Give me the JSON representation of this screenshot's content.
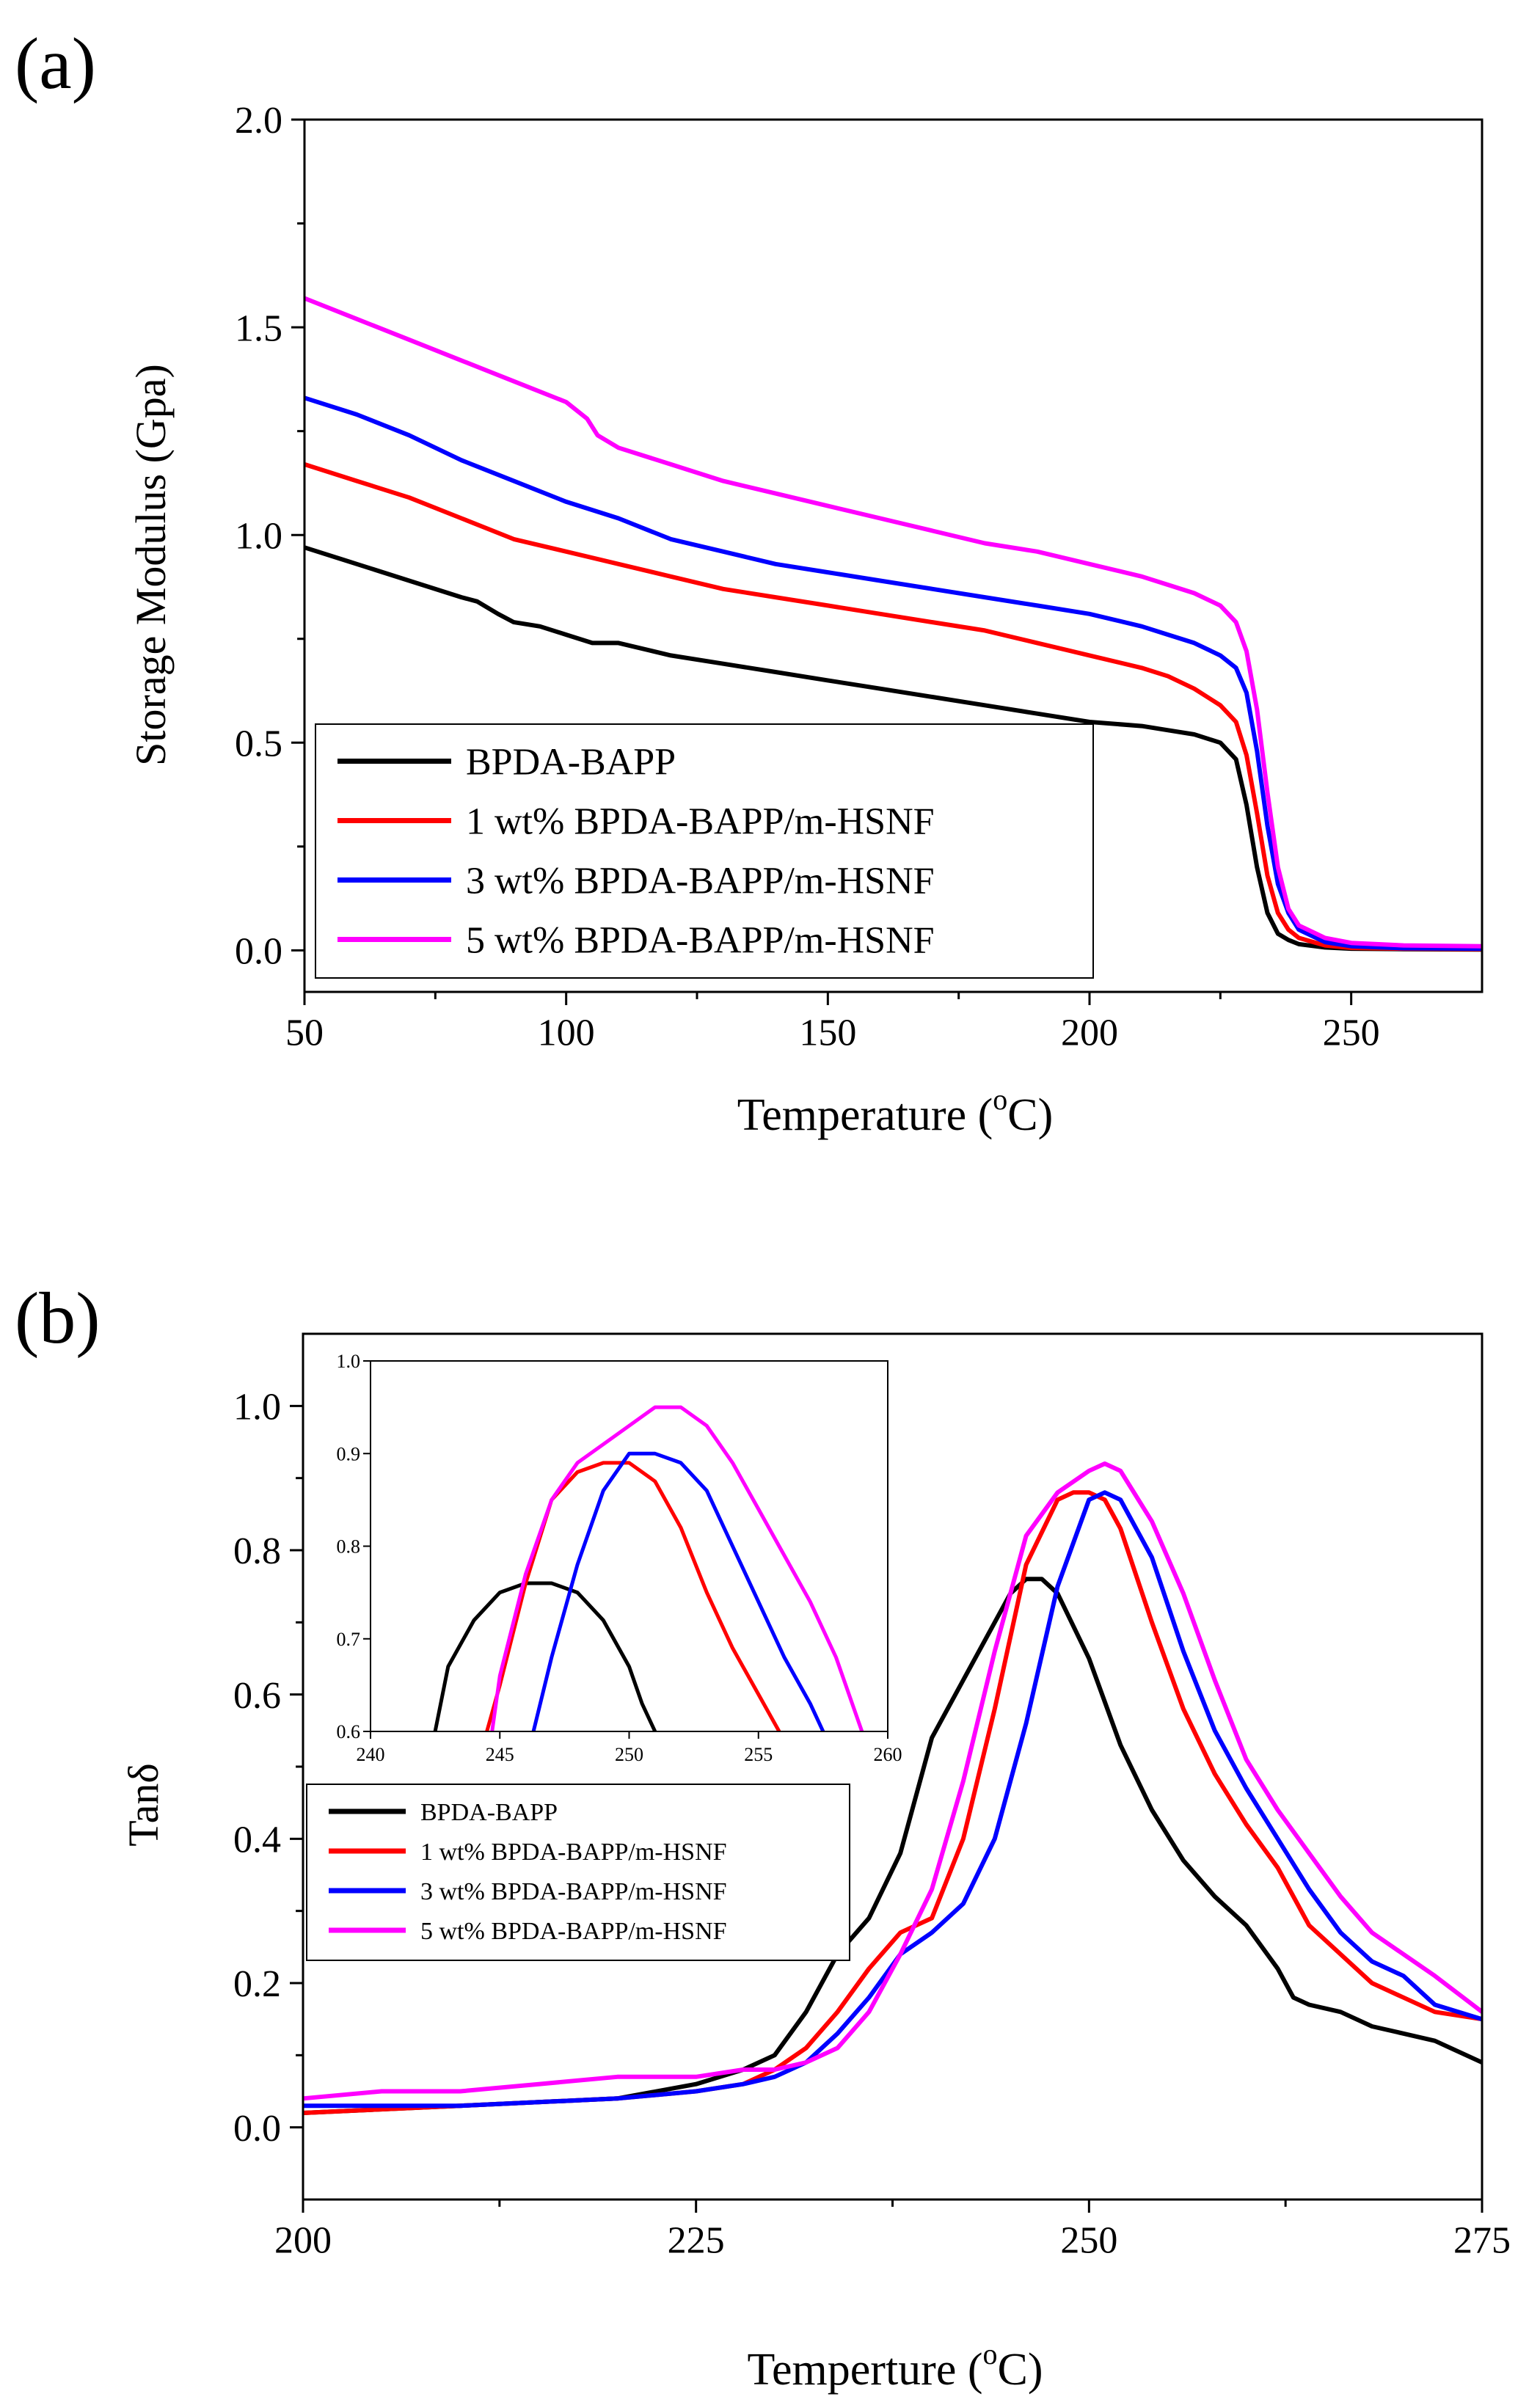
{
  "chart_data": [
    {
      "panel_label": "(a)",
      "type": "line",
      "xlabel_main": "Temperature (",
      "xlabel_sup": "o",
      "xlabel_end": "C)",
      "ylabel": "Storage Modulus (Gpa)",
      "xlim": [
        50,
        275
      ],
      "ylim": [
        -0.1,
        2.0
      ],
      "xticks": [
        50,
        100,
        150,
        200,
        250
      ],
      "xtick_labels": [
        "50",
        "100",
        "150",
        "200",
        "250"
      ],
      "yticks": [
        0,
        0.5,
        1.0,
        1.5,
        2.0
      ],
      "ytick_labels": [
        "0.0",
        "0.5",
        "1.0",
        "1.5",
        "2.0"
      ],
      "legend_position": "bottom-left",
      "series": [
        {
          "name": "BPDA-BAPP",
          "color": "#000000",
          "x": [
            50,
            60,
            70,
            80,
            83,
            87,
            90,
            95,
            100,
            105,
            110,
            120,
            130,
            140,
            150,
            160,
            170,
            180,
            190,
            200,
            210,
            215,
            220,
            225,
            228,
            230,
            232,
            234,
            236,
            238,
            240,
            245,
            250,
            260,
            275
          ],
          "y": [
            0.97,
            0.93,
            0.89,
            0.85,
            0.84,
            0.81,
            0.79,
            0.78,
            0.76,
            0.74,
            0.74,
            0.71,
            0.69,
            0.67,
            0.65,
            0.63,
            0.61,
            0.59,
            0.57,
            0.55,
            0.54,
            0.53,
            0.52,
            0.5,
            0.46,
            0.35,
            0.2,
            0.09,
            0.04,
            0.025,
            0.015,
            0.007,
            0.004,
            0.003,
            0.002
          ]
        },
        {
          "name": "1 wt% BPDA-BAPP/m-HSNF",
          "color": "#ff0000",
          "x": [
            50,
            60,
            70,
            80,
            90,
            100,
            110,
            120,
            130,
            140,
            150,
            160,
            170,
            180,
            190,
            200,
            210,
            215,
            220,
            225,
            228,
            230,
            232,
            234,
            236,
            238,
            240,
            245,
            250,
            260,
            275
          ],
          "y": [
            1.17,
            1.13,
            1.09,
            1.04,
            0.99,
            0.96,
            0.93,
            0.9,
            0.87,
            0.85,
            0.83,
            0.81,
            0.79,
            0.77,
            0.74,
            0.71,
            0.68,
            0.66,
            0.63,
            0.59,
            0.55,
            0.47,
            0.33,
            0.18,
            0.09,
            0.05,
            0.03,
            0.012,
            0.006,
            0.004,
            0.003
          ]
        },
        {
          "name": "3 wt% BPDA-BAPP/m-HSNF",
          "color": "#0000ff",
          "x": [
            50,
            60,
            70,
            80,
            90,
            100,
            110,
            120,
            130,
            140,
            150,
            160,
            170,
            180,
            190,
            200,
            210,
            215,
            220,
            225,
            228,
            230,
            232,
            234,
            236,
            238,
            240,
            245,
            250,
            260,
            275
          ],
          "y": [
            1.33,
            1.29,
            1.24,
            1.18,
            1.13,
            1.08,
            1.04,
            0.99,
            0.96,
            0.93,
            0.91,
            0.89,
            0.87,
            0.85,
            0.83,
            0.81,
            0.78,
            0.76,
            0.74,
            0.71,
            0.68,
            0.62,
            0.48,
            0.3,
            0.16,
            0.09,
            0.05,
            0.02,
            0.01,
            0.005,
            0.004
          ]
        },
        {
          "name": "5 wt% BPDA-BAPP/m-HSNF",
          "color": "#ff00ff",
          "x": [
            50,
            60,
            70,
            80,
            90,
            100,
            104,
            106,
            110,
            120,
            130,
            140,
            150,
            160,
            170,
            180,
            190,
            200,
            210,
            215,
            220,
            225,
            228,
            230,
            232,
            234,
            236,
            238,
            240,
            245,
            250,
            260,
            275
          ],
          "y": [
            1.57,
            1.52,
            1.47,
            1.42,
            1.37,
            1.32,
            1.28,
            1.24,
            1.21,
            1.17,
            1.13,
            1.1,
            1.07,
            1.04,
            1.01,
            0.98,
            0.96,
            0.93,
            0.9,
            0.88,
            0.86,
            0.83,
            0.79,
            0.72,
            0.58,
            0.38,
            0.2,
            0.1,
            0.06,
            0.03,
            0.018,
            0.012,
            0.01
          ]
        }
      ]
    },
    {
      "panel_label": "(b)",
      "type": "line",
      "xlabel_main": "Temperture (",
      "xlabel_sup": "o",
      "xlabel_end": "C)",
      "ylabel": "Tanδ",
      "xlim": [
        200,
        275
      ],
      "ylim": [
        -0.1,
        1.1
      ],
      "xticks": [
        200,
        225,
        250,
        275
      ],
      "xtick_labels": [
        "200",
        "225",
        "250",
        "275"
      ],
      "yticks": [
        0,
        0.2,
        0.4,
        0.6,
        0.8,
        1.0
      ],
      "ytick_labels": [
        "0.0",
        "0.2",
        "0.4",
        "0.6",
        "0.8",
        "1.0"
      ],
      "legend_position": "center-left",
      "series": [
        {
          "name": "BPDA-BAPP",
          "color": "#000000",
          "x": [
            200,
            210,
            220,
            225,
            228,
            230,
            232,
            234,
            236,
            238,
            240,
            241,
            242,
            244,
            245,
            246,
            247,
            248,
            250,
            252,
            254,
            256,
            258,
            260,
            262,
            263,
            264,
            266,
            268,
            270,
            272,
            275
          ],
          "y": [
            0.02,
            0.03,
            0.04,
            0.06,
            0.08,
            0.1,
            0.16,
            0.24,
            0.29,
            0.38,
            0.54,
            0.58,
            0.62,
            0.7,
            0.74,
            0.76,
            0.76,
            0.74,
            0.65,
            0.53,
            0.44,
            0.37,
            0.32,
            0.28,
            0.22,
            0.18,
            0.17,
            0.16,
            0.14,
            0.13,
            0.12,
            0.09
          ]
        },
        {
          "name": "1 wt% BPDA-BAPP/m-HSNF",
          "color": "#ff0000",
          "x": [
            200,
            210,
            220,
            225,
            228,
            230,
            232,
            234,
            236,
            238,
            240,
            242,
            244,
            246,
            248,
            249,
            250,
            251,
            252,
            254,
            256,
            258,
            260,
            262,
            264,
            266,
            268,
            270,
            272,
            275
          ],
          "y": [
            0.02,
            0.03,
            0.04,
            0.05,
            0.06,
            0.08,
            0.11,
            0.16,
            0.22,
            0.27,
            0.29,
            0.4,
            0.58,
            0.78,
            0.87,
            0.88,
            0.88,
            0.87,
            0.83,
            0.7,
            0.58,
            0.49,
            0.42,
            0.36,
            0.28,
            0.24,
            0.2,
            0.18,
            0.16,
            0.15
          ]
        },
        {
          "name": "3 wt% BPDA-BAPP/m-HSNF",
          "color": "#0000ff",
          "x": [
            200,
            210,
            220,
            225,
            228,
            230,
            232,
            234,
            236,
            238,
            240,
            242,
            244,
            246,
            248,
            250,
            251,
            252,
            254,
            256,
            258,
            260,
            262,
            264,
            266,
            268,
            270,
            272,
            275
          ],
          "y": [
            0.03,
            0.03,
            0.04,
            0.05,
            0.06,
            0.07,
            0.09,
            0.13,
            0.18,
            0.24,
            0.27,
            0.31,
            0.4,
            0.56,
            0.75,
            0.87,
            0.88,
            0.87,
            0.79,
            0.66,
            0.55,
            0.47,
            0.4,
            0.33,
            0.27,
            0.23,
            0.21,
            0.17,
            0.15
          ]
        },
        {
          "name": "5 wt% BPDA-BAPP/m-HSNF",
          "color": "#ff00ff",
          "x": [
            200,
            205,
            210,
            215,
            220,
            225,
            228,
            230,
            232,
            234,
            236,
            238,
            240,
            242,
            244,
            246,
            248,
            250,
            251,
            252,
            254,
            256,
            258,
            260,
            262,
            264,
            266,
            268,
            270,
            272,
            275
          ],
          "y": [
            0.04,
            0.05,
            0.05,
            0.06,
            0.07,
            0.07,
            0.08,
            0.08,
            0.09,
            0.11,
            0.16,
            0.24,
            0.33,
            0.48,
            0.66,
            0.82,
            0.88,
            0.91,
            0.92,
            0.91,
            0.84,
            0.74,
            0.62,
            0.51,
            0.44,
            0.38,
            0.32,
            0.27,
            0.24,
            0.21,
            0.16
          ]
        }
      ],
      "inset": {
        "xlim": [
          240,
          260
        ],
        "ylim": [
          0.6,
          1.0
        ],
        "xticks": [
          240,
          245,
          250,
          255,
          260
        ],
        "xtick_labels": [
          "240",
          "245",
          "250",
          "255",
          "260"
        ],
        "yticks": [
          0.6,
          0.7,
          0.8,
          0.9,
          1.0
        ],
        "ytick_labels": [
          "0.6",
          "0.7",
          "0.8",
          "0.9",
          "1.0"
        ],
        "series": [
          {
            "name": "BPDA-BAPP",
            "color": "#000000",
            "x": [
              242.5,
              243,
              244,
              245,
              246,
              247,
              248,
              249,
              250,
              250.5,
              251
            ],
            "y": [
              0.6,
              0.67,
              0.72,
              0.75,
              0.76,
              0.76,
              0.75,
              0.72,
              0.67,
              0.63,
              0.6
            ]
          },
          {
            "name": "1 wt% BPDA-BAPP/m-HSNF",
            "color": "#ff0000",
            "x": [
              244.5,
              245,
              246,
              247,
              248,
              249,
              250,
              251,
              252,
              253,
              254,
              255,
              255.8
            ],
            "y": [
              0.6,
              0.65,
              0.76,
              0.85,
              0.88,
              0.89,
              0.89,
              0.87,
              0.82,
              0.75,
              0.69,
              0.64,
              0.6
            ]
          },
          {
            "name": "3 wt% BPDA-BAPP/m-HSNF",
            "color": "#0000ff",
            "x": [
              246.3,
              247,
              248,
              249,
              250,
              251,
              252,
              253,
              254,
              255,
              256,
              257,
              257.5
            ],
            "y": [
              0.6,
              0.68,
              0.78,
              0.86,
              0.9,
              0.9,
              0.89,
              0.86,
              0.8,
              0.74,
              0.68,
              0.63,
              0.6
            ]
          },
          {
            "name": "5 wt% BPDA-BAPP/m-HSNF",
            "color": "#ff00ff",
            "x": [
              244.7,
              245,
              246,
              247,
              248,
              249,
              250,
              251,
              252,
              253,
              254,
              255,
              256,
              257,
              258,
              259
            ],
            "y": [
              0.6,
              0.66,
              0.77,
              0.85,
              0.89,
              0.91,
              0.93,
              0.95,
              0.95,
              0.93,
              0.89,
              0.84,
              0.79,
              0.74,
              0.68,
              0.6
            ]
          }
        ]
      }
    }
  ]
}
